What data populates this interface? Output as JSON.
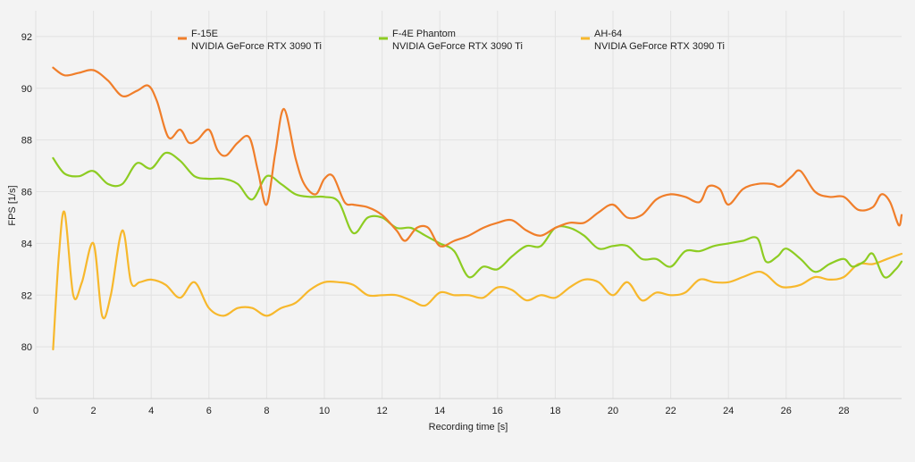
{
  "chart_data": {
    "type": "line",
    "xlabel": "Recording time [s]",
    "ylabel": "FPS [1/s]",
    "xlim": [
      0,
      30
    ],
    "ylim": [
      78,
      93
    ],
    "xticks": [
      0,
      2,
      4,
      6,
      8,
      10,
      12,
      14,
      16,
      18,
      20,
      22,
      24,
      26,
      28
    ],
    "yticks": [
      80,
      82,
      84,
      86,
      88,
      90,
      92
    ],
    "grid": true,
    "legend_position": "top",
    "series": [
      {
        "name": "F-15E",
        "subtitle": "NVIDIA GeForce RTX 3090 Ti",
        "color": "#f07e2a",
        "x": [
          0.6,
          1.0,
          1.5,
          2.0,
          2.5,
          3.0,
          3.5,
          3.9,
          4.2,
          4.6,
          5.0,
          5.3,
          5.6,
          6.0,
          6.3,
          6.6,
          7.0,
          7.4,
          7.7,
          8.0,
          8.3,
          8.6,
          9.0,
          9.3,
          9.7,
          10.0,
          10.3,
          10.7,
          11.0,
          11.5,
          12.0,
          12.5,
          12.8,
          13.2,
          13.6,
          14.0,
          14.5,
          15.0,
          15.5,
          16.0,
          16.5,
          17.0,
          17.5,
          18.0,
          18.5,
          19.0,
          19.5,
          20.0,
          20.5,
          21.0,
          21.5,
          22.0,
          22.5,
          23.0,
          23.3,
          23.7,
          24.0,
          24.5,
          25.0,
          25.5,
          25.8,
          26.2,
          26.5,
          27.0,
          27.5,
          28.0,
          28.5,
          29.0,
          29.3,
          29.6,
          29.9,
          30.0
        ],
        "values": [
          90.8,
          90.5,
          90.6,
          90.7,
          90.3,
          89.7,
          89.9,
          90.1,
          89.5,
          88.1,
          88.4,
          87.9,
          88.0,
          88.4,
          87.6,
          87.4,
          87.9,
          88.1,
          86.8,
          85.5,
          87.5,
          89.2,
          87.3,
          86.3,
          85.9,
          86.5,
          86.6,
          85.6,
          85.5,
          85.4,
          85.1,
          84.5,
          84.1,
          84.6,
          84.6,
          83.9,
          84.1,
          84.3,
          84.6,
          84.8,
          84.9,
          84.5,
          84.3,
          84.6,
          84.8,
          84.8,
          85.2,
          85.5,
          85.0,
          85.1,
          85.7,
          85.9,
          85.8,
          85.6,
          86.2,
          86.1,
          85.5,
          86.1,
          86.3,
          86.3,
          86.2,
          86.6,
          86.8,
          86.0,
          85.8,
          85.8,
          85.3,
          85.4,
          85.9,
          85.6,
          84.7,
          85.1
        ]
      },
      {
        "name": "F-4E Phantom",
        "subtitle": "NVIDIA GeForce RTX 3090 Ti",
        "color": "#8dcc22",
        "x": [
          0.6,
          1.0,
          1.5,
          2.0,
          2.5,
          3.0,
          3.5,
          4.0,
          4.5,
          5.0,
          5.5,
          6.0,
          6.5,
          7.0,
          7.5,
          8.0,
          8.5,
          9.0,
          9.5,
          10.0,
          10.5,
          11.0,
          11.5,
          12.0,
          12.5,
          13.0,
          13.5,
          14.0,
          14.5,
          15.0,
          15.5,
          16.0,
          16.5,
          17.0,
          17.5,
          18.0,
          18.5,
          19.0,
          19.5,
          20.0,
          20.5,
          21.0,
          21.5,
          22.0,
          22.5,
          23.0,
          23.5,
          24.0,
          24.5,
          25.0,
          25.3,
          25.7,
          26.0,
          26.5,
          27.0,
          27.5,
          28.0,
          28.3,
          28.7,
          29.0,
          29.4,
          29.8,
          30.0
        ],
        "values": [
          87.3,
          86.7,
          86.6,
          86.8,
          86.3,
          86.3,
          87.1,
          86.9,
          87.5,
          87.2,
          86.6,
          86.5,
          86.5,
          86.3,
          85.7,
          86.6,
          86.3,
          85.9,
          85.8,
          85.8,
          85.6,
          84.4,
          85.0,
          85.0,
          84.6,
          84.6,
          84.3,
          84.0,
          83.7,
          82.7,
          83.1,
          83.0,
          83.5,
          83.9,
          83.9,
          84.6,
          84.6,
          84.3,
          83.8,
          83.9,
          83.9,
          83.4,
          83.4,
          83.1,
          83.7,
          83.7,
          83.9,
          84.0,
          84.1,
          84.2,
          83.3,
          83.5,
          83.8,
          83.4,
          82.9,
          83.2,
          83.4,
          83.1,
          83.3,
          83.6,
          82.7,
          83.0,
          83.3
        ]
      },
      {
        "name": "AH-64",
        "subtitle": "NVIDIA GeForce RTX 3090 Ti",
        "color": "#f7b82c",
        "x": [
          0.6,
          0.8,
          1.0,
          1.3,
          1.6,
          2.0,
          2.3,
          2.6,
          3.0,
          3.3,
          3.6,
          4.0,
          4.5,
          5.0,
          5.5,
          6.0,
          6.5,
          7.0,
          7.5,
          8.0,
          8.5,
          9.0,
          9.5,
          10.0,
          10.5,
          11.0,
          11.5,
          12.0,
          12.5,
          13.0,
          13.5,
          14.0,
          14.5,
          15.0,
          15.5,
          16.0,
          16.5,
          17.0,
          17.5,
          18.0,
          18.5,
          19.0,
          19.5,
          20.0,
          20.5,
          21.0,
          21.5,
          22.0,
          22.5,
          23.0,
          23.5,
          24.0,
          24.5,
          25.0,
          25.3,
          25.7,
          26.0,
          26.5,
          27.0,
          27.5,
          28.0,
          28.5,
          29.0,
          29.5,
          30.0
        ],
        "values": [
          79.9,
          83.5,
          85.2,
          82.0,
          82.5,
          84.0,
          81.2,
          82.0,
          84.5,
          82.5,
          82.5,
          82.6,
          82.4,
          81.9,
          82.5,
          81.5,
          81.2,
          81.5,
          81.5,
          81.2,
          81.5,
          81.7,
          82.2,
          82.5,
          82.5,
          82.4,
          82.0,
          82.0,
          82.0,
          81.8,
          81.6,
          82.1,
          82.0,
          82.0,
          81.9,
          82.3,
          82.2,
          81.8,
          82.0,
          81.9,
          82.3,
          82.6,
          82.5,
          82.0,
          82.5,
          81.8,
          82.1,
          82.0,
          82.1,
          82.6,
          82.5,
          82.5,
          82.7,
          82.9,
          82.8,
          82.4,
          82.3,
          82.4,
          82.7,
          82.6,
          82.7,
          83.2,
          83.2,
          83.4,
          83.6
        ]
      }
    ]
  }
}
